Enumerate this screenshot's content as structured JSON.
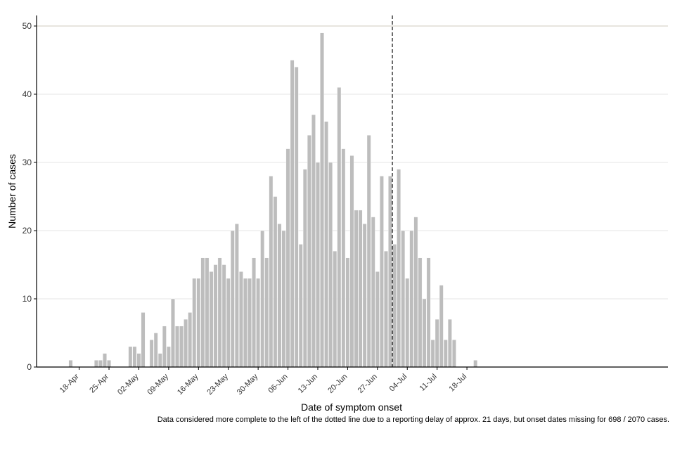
{
  "chart_data": {
    "type": "bar",
    "title": "",
    "xlabel": "Date of symptom onset",
    "ylabel": "Number of cases",
    "ylim": [
      0,
      50
    ],
    "yticks": [
      0,
      10,
      20,
      30,
      40,
      50
    ],
    "x_tick_labels": [
      "18-Apr",
      "25-Apr",
      "02-May",
      "09-May",
      "16-May",
      "23-May",
      "30-May",
      "06-Jun",
      "13-Jun",
      "20-Jun",
      "27-Jun",
      "04-Jul",
      "11-Jul",
      "18-Jul"
    ],
    "first_date": "16-Apr",
    "values": [
      1,
      0,
      0,
      0,
      0,
      0,
      1,
      1,
      2,
      1,
      0,
      0,
      0,
      0,
      3,
      3,
      2,
      8,
      0,
      4,
      5,
      2,
      6,
      3,
      10,
      6,
      6,
      7,
      8,
      13,
      13,
      16,
      16,
      14,
      15,
      16,
      15,
      13,
      20,
      21,
      14,
      13,
      13,
      16,
      13,
      20,
      16,
      28,
      25,
      21,
      20,
      32,
      45,
      44,
      18,
      29,
      34,
      37,
      30,
      49,
      36,
      30,
      17,
      41,
      32,
      16,
      31,
      23,
      23,
      21,
      34,
      22,
      14,
      28,
      17,
      28,
      18,
      29,
      20,
      13,
      20,
      22,
      16,
      10,
      16,
      4,
      7,
      12,
      4,
      7,
      4,
      0,
      0,
      0,
      0,
      1
    ],
    "dotted_line_after_date": "30-Jun",
    "bar_color": "#bdbdbd",
    "caption": "Data considered more complete to the left of the dotted line due to a reporting delay of approx. 21 days, but onset dates missing for 698 / 2070 cases."
  }
}
